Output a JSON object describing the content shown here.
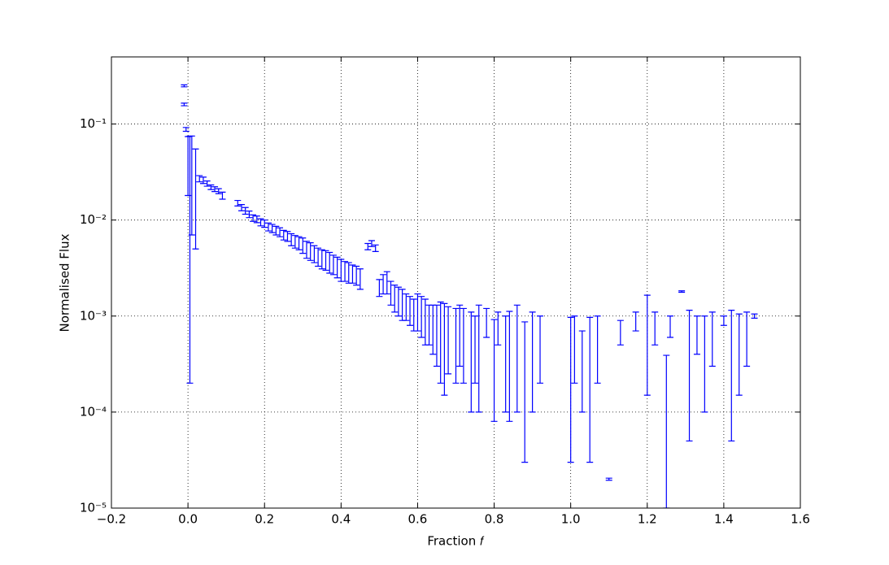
{
  "chart_data": {
    "type": "errorbar",
    "xlabel": "Fraction 𝑓",
    "ylabel": "Normalised Flux",
    "log_y": true,
    "grid": true,
    "xlim": [
      -0.2,
      1.6
    ],
    "ylim": [
      1e-05,
      0.5
    ],
    "xticks": [
      {
        "value": -0.2,
        "label": "−0.2"
      },
      {
        "value": 0,
        "label": "0.0"
      },
      0.2,
      0.4,
      0.6,
      0.8,
      {
        "value": 1,
        "label": "1.0"
      },
      1.2,
      1.4,
      1.6
    ],
    "yticks": [
      {
        "value": 1e-05,
        "label": "10⁻⁵"
      },
      {
        "value": 0.0001,
        "label": "10⁻⁴"
      },
      {
        "value": 0.001,
        "label": "10⁻³"
      },
      {
        "value": 0.01,
        "label": "10⁻²"
      },
      {
        "value": 0.1,
        "label": "10⁻¹"
      }
    ],
    "series": [
      {
        "color": "#0000ff",
        "x": [
          -0.01,
          -0.01,
          -0.005,
          0.0,
          0.005,
          0.01,
          0.02,
          0.03,
          0.04,
          0.05,
          0.06,
          0.07,
          0.08,
          0.09,
          0.13,
          0.14,
          0.15,
          0.16,
          0.17,
          0.18,
          0.19,
          0.2,
          0.21,
          0.22,
          0.23,
          0.24,
          0.25,
          0.26,
          0.27,
          0.28,
          0.29,
          0.3,
          0.31,
          0.32,
          0.33,
          0.34,
          0.35,
          0.36,
          0.37,
          0.38,
          0.39,
          0.4,
          0.41,
          0.42,
          0.43,
          0.44,
          0.45,
          0.47,
          0.48,
          0.49,
          0.5,
          0.51,
          0.52,
          0.53,
          0.54,
          0.55,
          0.56,
          0.57,
          0.58,
          0.59,
          0.6,
          0.61,
          0.62,
          0.63,
          0.64,
          0.65,
          0.66,
          0.67,
          0.68,
          0.7,
          0.71,
          0.72,
          0.74,
          0.75,
          0.76,
          0.78,
          0.8,
          0.81,
          0.83,
          0.84,
          0.86,
          0.88,
          0.9,
          0.92,
          1.0,
          1.01,
          1.03,
          1.05,
          1.07,
          1.1,
          1.13,
          1.17,
          1.2,
          1.22,
          1.25,
          1.26,
          1.29,
          1.31,
          1.33,
          1.35,
          1.37,
          1.4,
          1.42,
          1.44,
          1.46,
          1.48
        ],
        "values": [
          0.25,
          0.16,
          0.088,
          0.046,
          0.0375,
          0.041,
          0.03,
          0.027,
          0.026,
          0.024,
          0.022,
          0.021,
          0.02,
          0.018,
          0.015,
          0.0135,
          0.0125,
          0.0115,
          0.0105,
          0.0102,
          0.0095,
          0.0092,
          0.0085,
          0.0082,
          0.0078,
          0.0075,
          0.007,
          0.0068,
          0.0063,
          0.006,
          0.0058,
          0.0055,
          0.005,
          0.0048,
          0.0045,
          0.0042,
          0.004,
          0.0039,
          0.0037,
          0.0035,
          0.0033,
          0.0031,
          0.003,
          0.0029,
          0.0028,
          0.0027,
          0.0025,
          0.0053,
          0.0057,
          0.0051,
          0.002,
          0.0022,
          0.0023,
          0.0018,
          0.0016,
          0.0015,
          0.0014,
          0.0013,
          0.0012,
          0.0011,
          0.0012,
          0.0011,
          0.001,
          0.0009,
          0.00085,
          0.0008,
          0.0008,
          0.00075,
          0.00075,
          0.0007,
          0.0008,
          0.0007,
          0.0006,
          0.0006,
          0.0007,
          0.0009,
          0.0005,
          0.0008,
          0.00055,
          0.0006,
          0.0007,
          0.00045,
          0.0006,
          0.0006,
          0.0005,
          0.0006,
          0.0004,
          0.0005,
          0.0006,
          2e-05,
          0.0007,
          0.0009,
          0.0009,
          0.0008,
          0.0002,
          0.0008,
          0.0018,
          0.0006,
          0.0007,
          0.00055,
          0.0007,
          0.0009,
          0.0006,
          0.0006,
          0.0007,
          0.001
        ],
        "errors": [
          0.006,
          0.005,
          0.004,
          0.028,
          0.0373,
          0.034,
          0.025,
          0.002,
          0.002,
          0.0015,
          0.0012,
          0.0012,
          0.0012,
          0.0015,
          0.001,
          0.001,
          0.001,
          0.0009,
          0.0008,
          0.0008,
          0.0008,
          0.0008,
          0.0008,
          0.0008,
          0.0008,
          0.0008,
          0.0008,
          0.0008,
          0.0009,
          0.0009,
          0.0009,
          0.001,
          0.001,
          0.001,
          0.0009,
          0.0009,
          0.0009,
          0.0009,
          0.0009,
          0.0008,
          0.0008,
          0.0008,
          0.0007,
          0.0007,
          0.0006,
          0.0006,
          0.0006,
          0.0004,
          0.0004,
          0.0004,
          0.0004,
          0.0005,
          0.0006,
          0.0005,
          0.0005,
          0.0005,
          0.0005,
          0.0004,
          0.0004,
          0.0004,
          0.0005,
          0.0005,
          0.0005,
          0.0004,
          0.00045,
          0.0005,
          0.0006,
          0.0006,
          0.0005,
          0.0005,
          0.0005,
          0.0005,
          0.0005,
          0.0004,
          0.0006,
          0.0003,
          0.00042,
          0.0003,
          0.00045,
          0.00052,
          0.0006,
          0.00042,
          0.0005,
          0.0004,
          0.00047,
          0.0004,
          0.0003,
          0.00047,
          0.0004,
          5e-07,
          0.0002,
          0.0002,
          0.00075,
          0.0003,
          0.00019,
          0.0002,
          3e-05,
          0.00055,
          0.0003,
          0.00045,
          0.0004,
          0.0001,
          0.00055,
          0.00045,
          0.0004,
          5e-05
        ]
      }
    ]
  }
}
